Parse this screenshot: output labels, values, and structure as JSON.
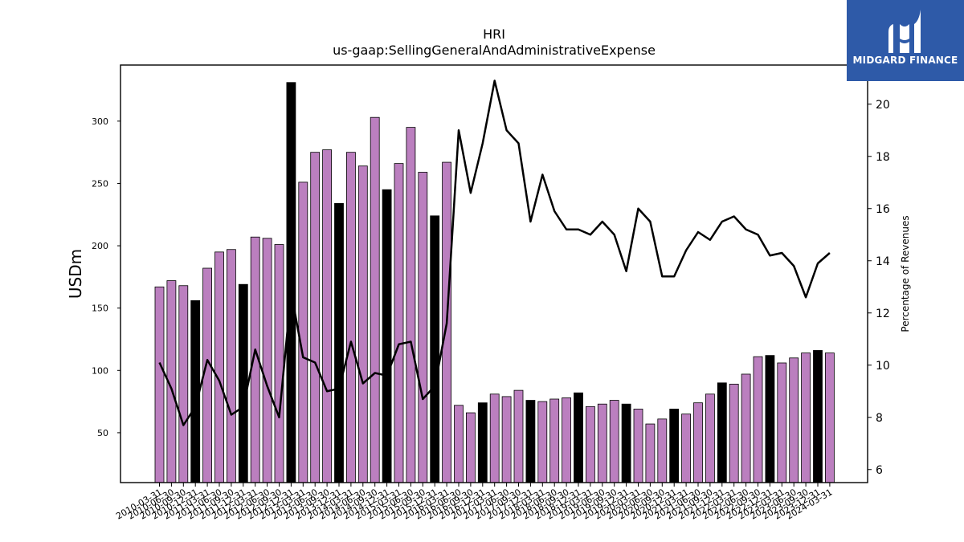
{
  "chart_data": {
    "type": "bar",
    "title": "HRI",
    "subtitle": "us-gaap:SellingGeneralAndAdministrativeExpense",
    "ylabel": "USDm",
    "ylabel_right": "Percentage of Revenues",
    "ylim": [
      10,
      345
    ],
    "ylim_right": [
      5.5,
      21.5
    ],
    "yticks": [
      50,
      100,
      150,
      200,
      250,
      300
    ],
    "yticks_right": [
      6,
      8,
      10,
      12,
      14,
      16,
      18,
      20
    ],
    "grid": false,
    "bar_fill": "#bb7fbf",
    "bar_fill_q4": "#000000",
    "line_color": "#000000",
    "categories": [
      "2010-03-31",
      "2010-06-30",
      "2010-09-30",
      "2010-12-31",
      "2011-03-31",
      "2011-06-30",
      "2011-09-30",
      "2011-12-31",
      "2012-03-31",
      "2012-06-30",
      "2012-09-30",
      "2012-12-31",
      "2013-03-31",
      "2013-06-30",
      "2013-09-30",
      "2013-12-31",
      "2014-03-31",
      "2014-06-30",
      "2014-09-30",
      "2014-12-31",
      "2015-03-31",
      "2015-06-30",
      "2015-09-30",
      "2015-12-31",
      "2016-03-31",
      "2016-06-30",
      "2016-09-30",
      "2016-12-31",
      "2017-03-31",
      "2017-06-30",
      "2017-09-30",
      "2017-12-31",
      "2018-03-31",
      "2018-06-30",
      "2018-09-30",
      "2018-12-31",
      "2019-03-31",
      "2019-06-30",
      "2019-09-30",
      "2019-12-31",
      "2020-03-31",
      "2020-06-30",
      "2020-09-30",
      "2020-12-31",
      "2021-03-31",
      "2021-06-30",
      "2021-09-30",
      "2021-12-31",
      "2022-03-31",
      "2022-06-30",
      "2022-09-30",
      "2022-12-31",
      "2023-03-31",
      "2023-06-30",
      "2023-09-30",
      "2023-12-31",
      "2024-03-31"
    ],
    "series": [
      {
        "type": "bar",
        "values": [
          167,
          172,
          168,
          156,
          182,
          195,
          197,
          169,
          207,
          206,
          201,
          331,
          251,
          275,
          277,
          234,
          275,
          264,
          303,
          245,
          266,
          295,
          259,
          224,
          267,
          72,
          66,
          74,
          81,
          79,
          84,
          76,
          75,
          77,
          78,
          82,
          71,
          73,
          76,
          73,
          69,
          57,
          61,
          69,
          65,
          74,
          81,
          90,
          89,
          97,
          111,
          112,
          106,
          110,
          114,
          116,
          114
        ]
      },
      {
        "type": "line",
        "axis": "right",
        "values": [
          10.1,
          9.1,
          7.7,
          8.4,
          10.2,
          9.4,
          8.1,
          8.4,
          10.6,
          9.2,
          8.0,
          12.8,
          10.3,
          10.1,
          9.0,
          9.1,
          10.9,
          9.3,
          9.7,
          9.6,
          10.8,
          10.9,
          8.7,
          9.2,
          11.6,
          19.0,
          16.6,
          18.5,
          20.9,
          19.0,
          18.5,
          15.5,
          17.3,
          15.9,
          15.2,
          15.2,
          15.0,
          15.5,
          15.0,
          13.6,
          16.0,
          15.5,
          13.4,
          13.4,
          14.4,
          15.1,
          14.8,
          15.5,
          15.7,
          15.2,
          15.0,
          14.2,
          14.3,
          13.8,
          12.6,
          13.9,
          14.3
        ]
      }
    ]
  },
  "logo": {
    "text": "MIDGARD FINANCE"
  }
}
